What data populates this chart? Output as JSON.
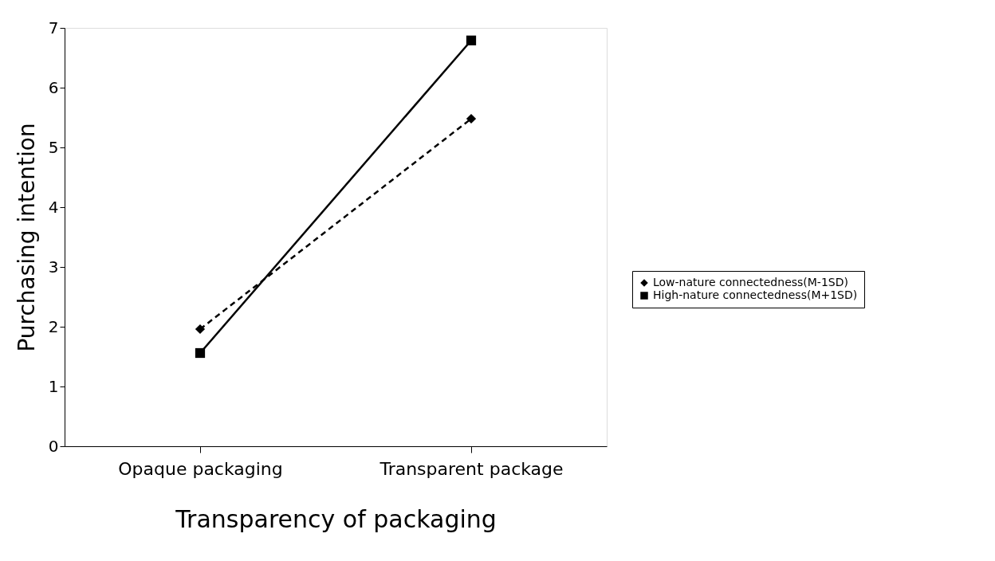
{
  "chart_data": {
    "type": "line",
    "xlabel": "Transparency of packaging",
    "ylabel": "Purchasing intention",
    "categories": [
      "Opaque packaging",
      "Transparent package"
    ],
    "series": [
      {
        "name": "Low-nature connectedness(M-1SD)",
        "color": "#000000",
        "values": [
          1.96,
          5.48
        ],
        "marker": "diamond",
        "line_style": "dashed"
      },
      {
        "name": "High-nature connectedness(M+1SD)",
        "color": "#000000",
        "values": [
          1.56,
          6.79
        ],
        "marker": "square",
        "line_style": "solid"
      }
    ],
    "ylim": [
      0,
      7
    ],
    "yticks": [
      0,
      1,
      2,
      3,
      4,
      5,
      6,
      7
    ],
    "grid": false,
    "legend": "right"
  }
}
